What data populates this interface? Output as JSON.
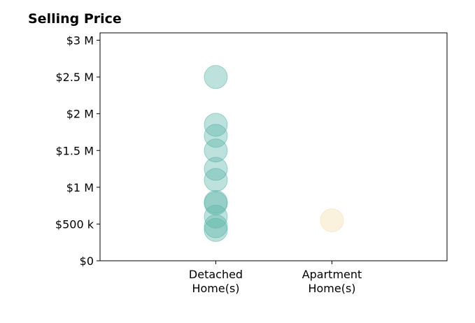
{
  "chart_data": {
    "type": "scatter",
    "title": "Selling Price",
    "categories": [
      "Detached\nHome(s)",
      "Apartment\nHome(s)"
    ],
    "y_ticks": [
      {
        "value": 0,
        "label": "$0"
      },
      {
        "value": 500000,
        "label": "$500 k"
      },
      {
        "value": 1000000,
        "label": "$1 M"
      },
      {
        "value": 1500000,
        "label": "$1.5 M"
      },
      {
        "value": 2000000,
        "label": "$2 M"
      },
      {
        "value": 2500000,
        "label": "$2.5 M"
      },
      {
        "value": 3000000,
        "label": "$3 M"
      }
    ],
    "ylim": [
      0,
      3100000
    ],
    "series": [
      {
        "category": "Detached\nHome(s)",
        "color": "#5bb5a8",
        "values": [
          2500000,
          1850000,
          1700000,
          1500000,
          1250000,
          1100000,
          800000,
          780000,
          600000,
          470000,
          420000
        ]
      },
      {
        "category": "Apartment\nHome(s)",
        "color": "#f2dfa9",
        "values": [
          550000
        ]
      }
    ],
    "grid": false,
    "legend": "none"
  }
}
